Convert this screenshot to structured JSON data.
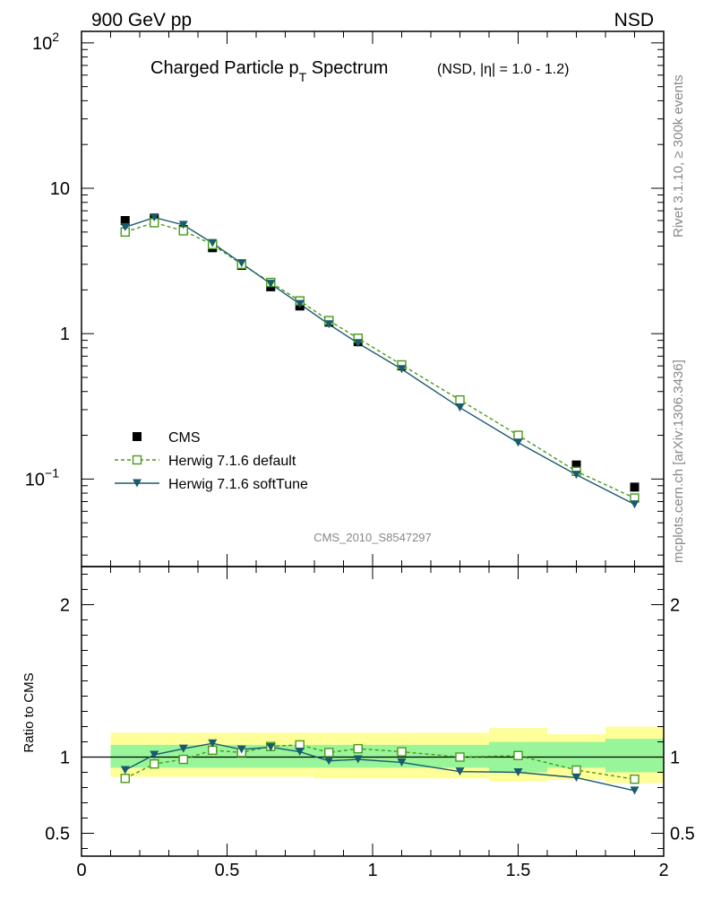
{
  "header": {
    "left": "900 GeV pp",
    "right": "NSD"
  },
  "side_labels": {
    "rivet": "Rivet 3.1.10, ≥ 300k events",
    "mcplots": "mcplots.cern.ch [arXiv:1306.3436]"
  },
  "chart_data": [
    {
      "type": "line",
      "title_main": "Charged Particle p",
      "title_sub": "T",
      "title_tail": " Spectrum",
      "title_small": "(NSD, |η| = 1.0 - 1.2)",
      "watermark": "CMS_2010_S8547297",
      "yscale": "log",
      "xlim": [
        0,
        2
      ],
      "ylim": [
        0.025,
        120
      ],
      "y_ticks": [
        {
          "value": 100,
          "base": "10",
          "exp": "2"
        },
        {
          "value": 10,
          "base": "10",
          "exp": ""
        },
        {
          "value": 1,
          "base": "1",
          "exp": ""
        },
        {
          "value": 0.1,
          "base": "10",
          "exp": "−1"
        }
      ],
      "legend_position": "lower-left",
      "series": [
        {
          "name": "CMS",
          "style": "marker-square-filled",
          "color": "#000000",
          "x": [
            0.15,
            0.25,
            0.35,
            0.45,
            0.55,
            0.65,
            0.75,
            0.85,
            0.95,
            1.1,
            1.3,
            1.5,
            1.7,
            1.9
          ],
          "y": [
            6.0,
            6.2,
            5.2,
            3.9,
            2.95,
            2.1,
            1.55,
            1.2,
            0.88,
            0.6,
            0.35,
            0.2,
            0.125,
            0.088
          ]
        },
        {
          "name": "Herwig 7.1.6 default",
          "style": "dashed-open-square",
          "color": "#4a9a1a",
          "x": [
            0.15,
            0.25,
            0.35,
            0.45,
            0.55,
            0.65,
            0.75,
            0.85,
            0.95,
            1.1,
            1.3,
            1.5,
            1.7,
            1.9
          ],
          "y": [
            5.0,
            5.8,
            5.1,
            4.1,
            3.0,
            2.25,
            1.68,
            1.23,
            0.93,
            0.61,
            0.35,
            0.2,
            0.113,
            0.074
          ]
        },
        {
          "name": "Herwig 7.1.6 softTune",
          "style": "solid-filled-triangle-down",
          "color": "#1a5a6e",
          "x": [
            0.15,
            0.25,
            0.35,
            0.45,
            0.55,
            0.65,
            0.75,
            0.85,
            0.95,
            1.1,
            1.3,
            1.5,
            1.7,
            1.9
          ],
          "y": [
            5.4,
            6.3,
            5.6,
            4.2,
            3.05,
            2.2,
            1.6,
            1.16,
            0.86,
            0.57,
            0.31,
            0.178,
            0.107,
            0.067
          ]
        }
      ]
    },
    {
      "type": "line",
      "ylabel": "Ratio to CMS",
      "xlim": [
        0,
        2
      ],
      "ylim": [
        0.35,
        2.25
      ],
      "x_ticks": [
        "0",
        "0.5",
        "1",
        "1.5",
        "2"
      ],
      "y_ticks": [
        "0.5",
        "1",
        "2"
      ],
      "reference_line": 1,
      "bands": {
        "bins": [
          [
            0.1,
            0.2
          ],
          [
            0.2,
            0.3
          ],
          [
            0.3,
            0.4
          ],
          [
            0.4,
            0.5
          ],
          [
            0.5,
            0.6
          ],
          [
            0.6,
            0.7
          ],
          [
            0.7,
            0.8
          ],
          [
            0.8,
            0.9
          ],
          [
            0.9,
            1.0
          ],
          [
            1.0,
            1.2
          ],
          [
            1.2,
            1.4
          ],
          [
            1.4,
            1.6
          ],
          [
            1.6,
            1.8
          ],
          [
            1.8,
            2.0
          ]
        ],
        "green": [
          [
            0.93,
            1.08
          ],
          [
            0.93,
            1.08
          ],
          [
            0.93,
            1.08
          ],
          [
            0.93,
            1.08
          ],
          [
            0.93,
            1.08
          ],
          [
            0.93,
            1.08
          ],
          [
            0.93,
            1.08
          ],
          [
            0.93,
            1.08
          ],
          [
            0.93,
            1.08
          ],
          [
            0.93,
            1.08
          ],
          [
            0.93,
            1.08
          ],
          [
            0.9,
            1.1
          ],
          [
            0.93,
            1.1
          ],
          [
            0.9,
            1.12
          ]
        ],
        "yellow": [
          [
            0.87,
            1.16
          ],
          [
            0.87,
            1.16
          ],
          [
            0.87,
            1.16
          ],
          [
            0.87,
            1.16
          ],
          [
            0.87,
            1.16
          ],
          [
            0.87,
            1.16
          ],
          [
            0.87,
            1.16
          ],
          [
            0.86,
            1.16
          ],
          [
            0.86,
            1.16
          ],
          [
            0.86,
            1.16
          ],
          [
            0.86,
            1.16
          ],
          [
            0.84,
            1.19
          ],
          [
            0.85,
            1.15
          ],
          [
            0.83,
            1.2
          ]
        ]
      },
      "colors": {
        "green_band": "#99f599",
        "yellow_band": "#ffff99"
      },
      "series": [
        {
          "name": "Herwig 7.1.6 default",
          "x": [
            0.15,
            0.25,
            0.35,
            0.45,
            0.55,
            0.65,
            0.75,
            0.85,
            0.95,
            1.1,
            1.3,
            1.5,
            1.7,
            1.9
          ],
          "y": [
            0.86,
            0.955,
            0.985,
            1.045,
            1.03,
            1.07,
            1.08,
            1.03,
            1.055,
            1.035,
            1.0,
            1.01,
            0.915,
            0.855
          ]
        },
        {
          "name": "Herwig 7.1.6 softTune",
          "x": [
            0.15,
            0.25,
            0.35,
            0.45,
            0.55,
            0.65,
            0.75,
            0.85,
            0.95,
            1.1,
            1.3,
            1.5,
            1.7,
            1.9
          ],
          "y": [
            0.915,
            1.015,
            1.055,
            1.09,
            1.05,
            1.065,
            1.035,
            0.975,
            0.985,
            0.965,
            0.905,
            0.9,
            0.865,
            0.78
          ]
        }
      ]
    }
  ]
}
